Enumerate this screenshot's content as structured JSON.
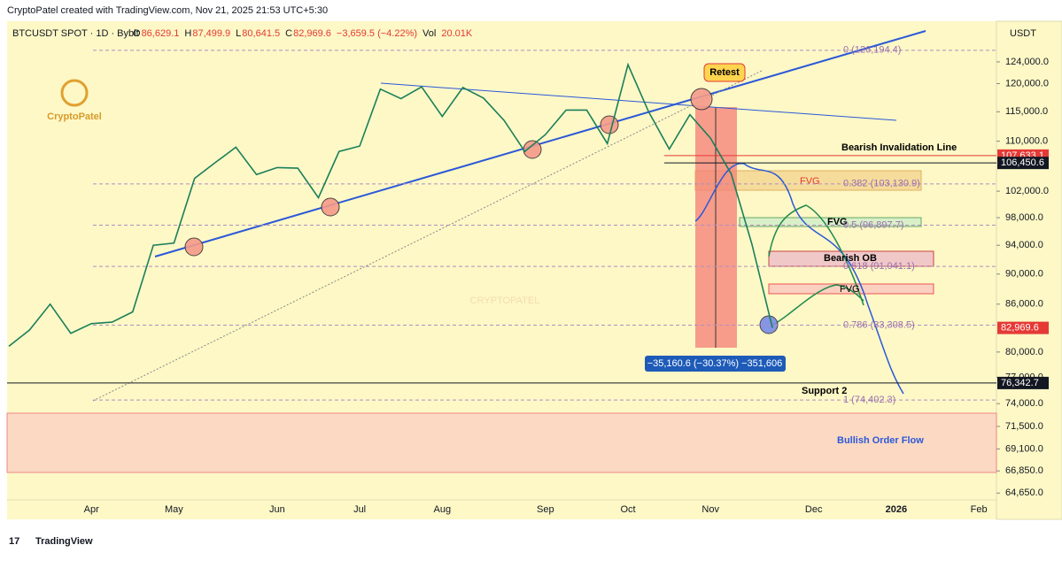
{
  "header": {
    "credit": "CryptoPatel created with TradingView.com, Nov 21, 2025 21:53 UTC+5:30",
    "symbol": "BTCUSDT SPOT · 1D · Bybit",
    "ohlc": [
      "O",
      "86,629.1",
      "H",
      "87,499.9",
      "L",
      "80,641.5",
      "C",
      "82,969.6",
      "−3,659.5 (−4.22%)",
      "Vol",
      "20.01K"
    ],
    "currency": "USDT"
  },
  "logo": "CryptoPatel",
  "watermark": "CRYPTOPATEL",
  "footer": "TradingView",
  "chart_data": {
    "type": "line",
    "color": "#1b7f5a",
    "log_scale": true,
    "categories": [
      null,
      null,
      null,
      null,
      "Apr",
      null,
      null,
      null,
      "May",
      null,
      null,
      null,
      null,
      "Jun",
      null,
      null,
      null,
      "Jul",
      null,
      null,
      null,
      "Aug",
      null,
      null,
      null,
      null,
      "Sep",
      null,
      null,
      null,
      "Oct",
      null,
      null,
      null,
      "Nov",
      null,
      null,
      null,
      null,
      "Dec",
      null,
      null,
      null,
      "2026",
      null,
      null,
      null,
      "Feb"
    ],
    "values": [
      80700,
      82700,
      86000,
      82300,
      83500,
      83700,
      85000,
      94000,
      94300,
      104000,
      106500,
      109000,
      104600,
      105700,
      105600,
      101000,
      108300,
      109200,
      119000,
      117300,
      119400,
      114200,
      119300,
      117400,
      113500,
      108300,
      111100,
      115300,
      115300,
      109600,
      123500,
      115000,
      108700,
      114500,
      110500,
      104700,
      94200,
      82969.6,
      null,
      null,
      null,
      null,
      null,
      null,
      null,
      null,
      null,
      null
    ],
    "ylim": [
      62300,
      130800
    ],
    "yticks": [
      {
        "value": 124000,
        "label": "124,000.0"
      },
      {
        "value": 120000,
        "label": "120,000.0"
      },
      {
        "value": 115000,
        "label": "115,000.0"
      },
      {
        "value": 110000,
        "label": "110,000.0"
      },
      {
        "value": 102000,
        "label": "102,000.0"
      },
      {
        "value": 98000,
        "label": "98,000.0"
      },
      {
        "value": 94000,
        "label": "94,000.0"
      },
      {
        "value": 90000,
        "label": "90,000.0"
      },
      {
        "value": 86000,
        "label": "86,000.0"
      },
      {
        "value": 80000,
        "label": "80,000.0"
      },
      {
        "value": 77000,
        "label": "77,000.0"
      },
      {
        "value": 74000,
        "label": "74,000.0"
      },
      {
        "value": 71500,
        "label": "71,500.0"
      },
      {
        "value": 69100,
        "label": "69,100.0"
      },
      {
        "value": 66850,
        "label": "66,850.0"
      },
      {
        "value": 64650,
        "label": "64,650.0"
      }
    ],
    "fib_levels": [
      {
        "value": 126194.4,
        "label": "0 (126,194.4)"
      },
      {
        "value": 103130.9,
        "label": "0.382 (103,130.9)"
      },
      {
        "value": 96897.7,
        "label": "0.5 (96,897.7)"
      },
      {
        "value": 91041.1,
        "label": "0.618 (91,041.1)"
      },
      {
        "value": 83308.5,
        "label": "0.786 (83,308.5)"
      },
      {
        "value": 74402.3,
        "label": "1 (74,402.3)"
      }
    ],
    "price_tags": [
      {
        "value": 107633.1,
        "label": "107,633.1",
        "color": "#e53935"
      },
      {
        "value": 106450.6,
        "label": "106,450.6",
        "color": "#131722"
      },
      {
        "value": 82969.6,
        "label": "82,969.6",
        "color": "#e53935"
      },
      {
        "value": 76342.7,
        "label": "76,342.7",
        "color": "#131722"
      }
    ],
    "annotations": {
      "retest": "Retest",
      "fvg1": "FVG",
      "fvg2": "FVG",
      "fvg3": "FVG",
      "invalidation": "Bearish Invalidation Line",
      "bearish_ob": "Bearish OB",
      "support": "Support 2",
      "bullish_flow": "Bullish Order Flow",
      "measure": "−35,160.6 (−30.37%) −351,606"
    }
  }
}
